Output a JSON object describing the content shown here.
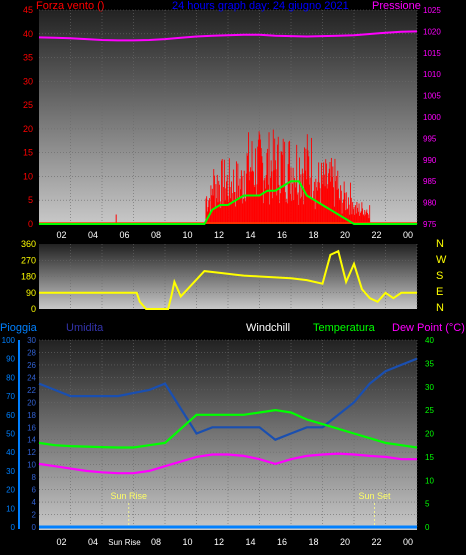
{
  "chart_data": [
    {
      "type": "line",
      "panel": "wind",
      "title": "24 hours graph day:  24 giugno 2021",
      "left_label": "Forza vento ()",
      "right_label": "Pressione",
      "x_ticks": [
        "02",
        "04",
        "06",
        "08",
        "10",
        "12",
        "14",
        "16",
        "18",
        "20",
        "22",
        "00"
      ],
      "ylim_left": [
        0,
        45
      ],
      "y_ticks_left": [
        "0",
        "5",
        "10",
        "15",
        "20",
        "25",
        "30",
        "35",
        "40",
        "45"
      ],
      "ylim_right": [
        975,
        1025
      ],
      "y_ticks_right": [
        "975",
        "980",
        "985",
        "990",
        "995",
        "1000",
        "1005",
        "1010",
        "1015",
        "1020",
        "1025"
      ],
      "colors": {
        "wind": "#ff0000",
        "gust": "#00ff00",
        "pressure": "#ff00ff",
        "title": "#0000ff"
      },
      "series": [
        {
          "color": "#ff00ff",
          "axis": "right",
          "x": [
            0,
            1,
            2,
            3,
            4,
            5,
            6,
            7,
            8,
            9,
            10,
            11,
            12,
            13,
            14,
            15,
            16,
            17,
            18,
            19,
            20,
            21,
            22,
            23,
            24
          ],
          "values": [
            1018.6,
            1018.5,
            1018.4,
            1018.2,
            1018.0,
            1017.9,
            1017.9,
            1018.0,
            1018.2,
            1018.5,
            1018.8,
            1019.0,
            1019.1,
            1019.2,
            1019.2,
            1019.0,
            1018.9,
            1018.8,
            1018.9,
            1019.0,
            1019.1,
            1019.4,
            1019.7,
            1019.9,
            1020.0
          ]
        },
        {
          "color": "#00ff00",
          "axis": "left",
          "x": [
            0,
            10.5,
            11,
            11.5,
            12,
            12.5,
            13,
            13.5,
            14,
            14.5,
            15,
            15.5,
            16,
            16.5,
            17,
            17.5,
            18,
            18.5,
            19,
            19.5,
            20,
            24
          ],
          "values": [
            0,
            0,
            3,
            4,
            4,
            5,
            6,
            6,
            6,
            7,
            7,
            8,
            9,
            9,
            6,
            5,
            4,
            3,
            2,
            1,
            0,
            0
          ]
        }
      ]
    },
    {
      "type": "line",
      "panel": "direction",
      "y_ticks_left": [
        "0",
        "90",
        "180",
        "270",
        "360"
      ],
      "ylim_left": [
        0,
        360
      ],
      "compass_labels": [
        "N",
        "W",
        "S",
        "E",
        "N"
      ],
      "series": [
        {
          "color": "#ffff00",
          "x": [
            0,
            6.2,
            6.4,
            6.8,
            7.5,
            8.2,
            8.4,
            8.6,
            9.0,
            10.5,
            11.5,
            12.5,
            13.0,
            14.0,
            15.0,
            16.0,
            17.0,
            18.0,
            18.5,
            19.0,
            19.5,
            20.0,
            20.5,
            21.0,
            21.5,
            22.0,
            22.5,
            23.0,
            24.0
          ],
          "values": [
            90,
            90,
            40,
            0,
            0,
            0,
            70,
            150,
            70,
            210,
            200,
            190,
            185,
            180,
            175,
            170,
            160,
            140,
            300,
            320,
            150,
            250,
            110,
            60,
            40,
            90,
            60,
            90,
            90
          ]
        }
      ]
    },
    {
      "type": "line",
      "panel": "weather",
      "x_ticks": [
        "02",
        "04",
        "Sun Rise",
        "08",
        "10",
        "12",
        "14",
        "16",
        "18",
        "20",
        "22",
        "00"
      ],
      "legend": [
        "Pioggia",
        "Umidita",
        "Windchill",
        "Temperatura",
        "Dew Point (°C)"
      ],
      "legend_colors": [
        "#0080ff",
        "#3333aa",
        "#ffffff",
        "#00ff00",
        "#ff00ff"
      ],
      "rain_ticks": [
        "0",
        "10",
        "20",
        "30",
        "40",
        "50",
        "60",
        "70",
        "80",
        "90",
        "100"
      ],
      "hum_ticks": [
        "0",
        "2",
        "4",
        "6",
        "8",
        "10",
        "12",
        "14",
        "16",
        "18",
        "20",
        "22",
        "24",
        "26",
        "28",
        "30"
      ],
      "ylim_left": [
        0,
        30
      ],
      "temp_ticks": [
        "0",
        "5",
        "10",
        "15",
        "20",
        "25",
        "30",
        "35",
        "40"
      ],
      "ylim_right": [
        0,
        40
      ],
      "annotations": [
        {
          "label": "Sun Rise",
          "x": 5.7
        },
        {
          "label": "Sun Set",
          "x": 21.3
        }
      ],
      "series": [
        {
          "name": "Umidita",
          "color": "#1a4fb0",
          "axis": "left",
          "x": [
            0,
            1,
            2,
            3,
            4,
            5,
            6,
            7,
            8,
            8.5,
            9,
            10,
            11,
            12,
            13,
            14,
            15,
            16,
            17,
            18,
            19,
            20,
            21,
            22,
            23,
            24
          ],
          "values": [
            23,
            22,
            21,
            21,
            21,
            21,
            21.5,
            22,
            23,
            21,
            19,
            15,
            16,
            16,
            16,
            16,
            14,
            15,
            16,
            16,
            18,
            20,
            23,
            25,
            26,
            27
          ]
        },
        {
          "name": "Temperatura",
          "color": "#00ff00",
          "axis": "right",
          "x": [
            0,
            1,
            2,
            3,
            4,
            5,
            6,
            7,
            8,
            9,
            10,
            11,
            12,
            13,
            14,
            15,
            16,
            17,
            18,
            19,
            20,
            21,
            22,
            23,
            24
          ],
          "values": [
            18,
            17.5,
            17.3,
            17.2,
            17.1,
            17,
            17,
            17.5,
            18,
            21,
            24,
            24,
            24,
            24,
            24.5,
            25,
            24.5,
            23,
            22,
            21,
            20,
            19,
            18,
            17.5,
            17
          ]
        },
        {
          "name": "Dew Point (°C)",
          "color": "#ff00ff",
          "axis": "right",
          "x": [
            0,
            1,
            2,
            3,
            4,
            5,
            6,
            7,
            8,
            9,
            10,
            11,
            12,
            13,
            14,
            15,
            16,
            17,
            18,
            19,
            20,
            21,
            22,
            23,
            24
          ],
          "values": [
            13.5,
            13,
            12.5,
            12,
            11.7,
            11.5,
            11.5,
            12,
            13,
            14,
            15,
            15.5,
            15.5,
            15.2,
            14.5,
            13.5,
            14.5,
            15.2,
            15.5,
            15.7,
            15.5,
            15.2,
            15,
            14.5,
            14.5
          ]
        },
        {
          "name": "Pioggia",
          "color": "#0080ff",
          "axis": "left",
          "x": [
            0,
            24
          ],
          "values": [
            0,
            0
          ]
        }
      ]
    }
  ]
}
